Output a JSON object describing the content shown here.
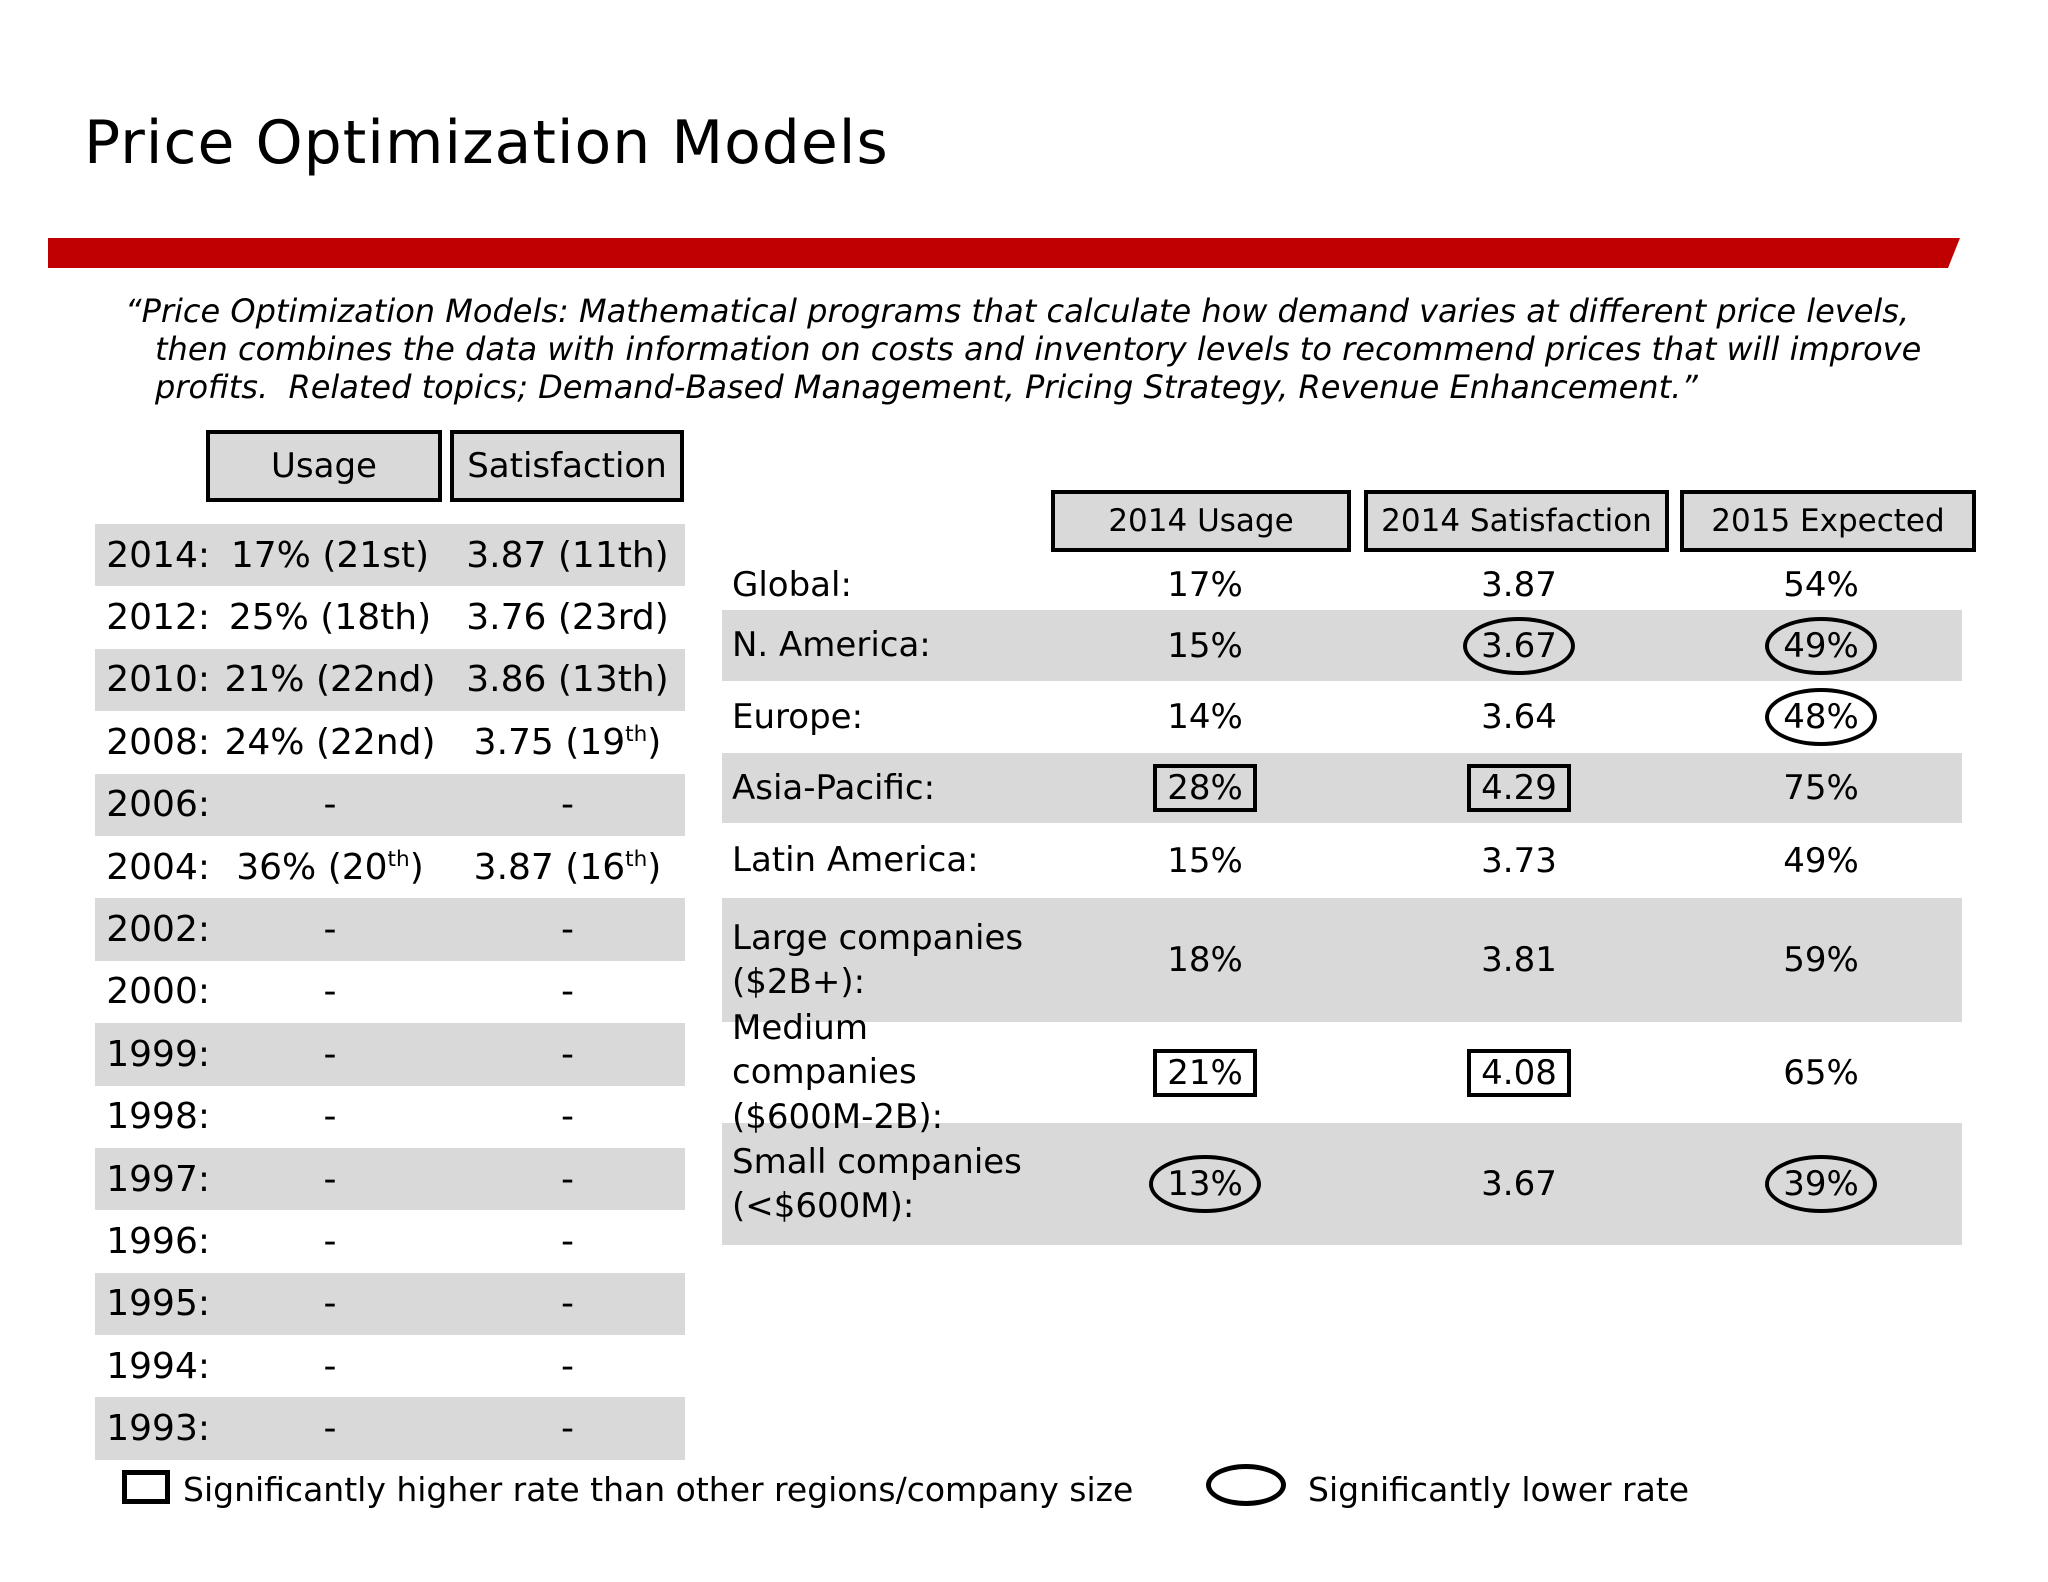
{
  "title": "Price Optimization Models",
  "colors": {
    "accent": "#C00000",
    "stripe": "#D9D9D9",
    "text": "#000000",
    "background": "#FFFFFF"
  },
  "quote_lines": [
    "“Price Optimization Models: Mathematical programs that calculate how demand varies at different price levels,",
    "then combines the data with information on costs and inventory levels to recommend prices that will improve",
    "profits.  Related topics; Demand-Based Management, Pricing Strategy, Revenue Enhancement.”"
  ],
  "history_table": {
    "headers": [
      "Usage",
      "Satisfaction"
    ],
    "rows": [
      {
        "year": "2014:",
        "usage": "17% (21st)",
        "satisfaction": "3.87 (11th)"
      },
      {
        "year": "2012:",
        "usage": "25% (18th)",
        "satisfaction": "3.76 (23rd)"
      },
      {
        "year": "2010:",
        "usage": "21% (22nd)",
        "satisfaction": "3.86 (13th)"
      },
      {
        "year": "2008:",
        "usage": "24% (22nd)",
        "satisfaction": {
          "pre": "3.75 (19",
          "sup": "th",
          "post": ")"
        }
      },
      {
        "year": "2006:",
        "usage": "-",
        "satisfaction": "-"
      },
      {
        "year": "2004:",
        "usage": {
          "pre": "36% (20",
          "sup": "th",
          "post": ")"
        },
        "satisfaction": {
          "pre": "3.87 (16",
          "sup": "th",
          "post": ")"
        }
      },
      {
        "year": "2002:",
        "usage": "-",
        "satisfaction": "-"
      },
      {
        "year": "2000:",
        "usage": "-",
        "satisfaction": "-"
      },
      {
        "year": "1999:",
        "usage": "-",
        "satisfaction": "-"
      },
      {
        "year": "1998:",
        "usage": "-",
        "satisfaction": "-"
      },
      {
        "year": "1997:",
        "usage": "-",
        "satisfaction": "-"
      },
      {
        "year": "1996:",
        "usage": "-",
        "satisfaction": "-"
      },
      {
        "year": "1995:",
        "usage": "-",
        "satisfaction": "-"
      },
      {
        "year": "1994:",
        "usage": "-",
        "satisfaction": "-"
      },
      {
        "year": "1993:",
        "usage": "-",
        "satisfaction": "-"
      }
    ]
  },
  "regional_table": {
    "headers": [
      "2014 Usage",
      "2014 Satisfaction",
      "2015 Expected"
    ],
    "rows": [
      {
        "label": "Global:",
        "label2": "",
        "shaded": false,
        "usage": {
          "v": "17%"
        },
        "satisfaction": {
          "v": "3.87"
        },
        "expected": {
          "v": "54%"
        }
      },
      {
        "label": "N. America:",
        "label2": "",
        "shaded": true,
        "usage": {
          "v": "15%"
        },
        "satisfaction": {
          "v": "3.67",
          "mark": "oval"
        },
        "expected": {
          "v": "49%",
          "mark": "oval"
        }
      },
      {
        "label": "Europe:",
        "label2": "",
        "shaded": false,
        "usage": {
          "v": "14%"
        },
        "satisfaction": {
          "v": "3.64"
        },
        "expected": {
          "v": "48%",
          "mark": "oval"
        }
      },
      {
        "label": "Asia-Pacific:",
        "label2": "",
        "shaded": true,
        "usage": {
          "v": "28%",
          "mark": "box"
        },
        "satisfaction": {
          "v": "4.29",
          "mark": "box"
        },
        "expected": {
          "v": "75%"
        }
      },
      {
        "label": "Latin America:",
        "label2": "",
        "shaded": false,
        "usage": {
          "v": "15%"
        },
        "satisfaction": {
          "v": "3.73"
        },
        "expected": {
          "v": "49%"
        }
      },
      {
        "label": "Large companies",
        "label2": "($2B+):",
        "shaded": true,
        "usage": {
          "v": "18%"
        },
        "satisfaction": {
          "v": "3.81"
        },
        "expected": {
          "v": "59%"
        }
      },
      {
        "label": "Medium companies",
        "label2": "($600M-2B):",
        "shaded": false,
        "usage": {
          "v": "21%",
          "mark": "box"
        },
        "satisfaction": {
          "v": "4.08",
          "mark": "box"
        },
        "expected": {
          "v": "65%"
        }
      },
      {
        "label": "Small companies",
        "label2": "(<$600M):",
        "shaded": true,
        "usage": {
          "v": "13%",
          "mark": "oval"
        },
        "satisfaction": {
          "v": "3.67"
        },
        "expected": {
          "v": "39%",
          "mark": "oval"
        }
      }
    ]
  },
  "legend": {
    "higher_label": "Significantly higher rate than other regions/company size",
    "lower_label": "Significantly lower rate"
  }
}
